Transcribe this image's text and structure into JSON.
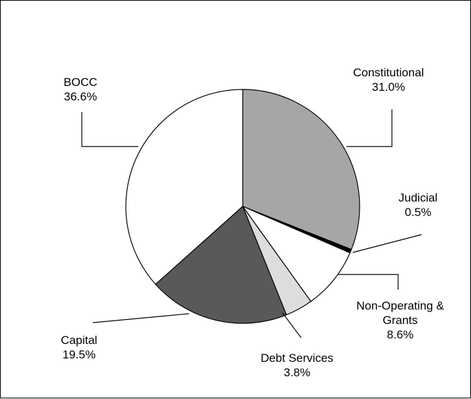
{
  "chart_data": {
    "type": "pie",
    "title": "",
    "slices": [
      {
        "name": "Constitutional",
        "value": 31.0,
        "label": "31.0%",
        "color": "#a6a6a6"
      },
      {
        "name": "Judicial",
        "value": 0.5,
        "label": "0.5%",
        "color": "#000000"
      },
      {
        "name": "Non-Operating & Grants",
        "name_lines": [
          "Non-Operating &",
          "Grants"
        ],
        "value": 8.6,
        "label": "8.6%",
        "color": "#ffffff"
      },
      {
        "name": "Debt Services",
        "value": 3.8,
        "label": "3.8%",
        "color": "#dddddd"
      },
      {
        "name": "Capital",
        "value": 19.5,
        "label": "19.5%",
        "color": "#595959"
      },
      {
        "name": "BOCC",
        "value": 36.6,
        "label": "36.6%",
        "color": "#ffffff"
      }
    ],
    "start_angle": "12 o'clock",
    "direction": "clockwise",
    "legend": "none (leader-line labels)",
    "slice_border_color": "#000000"
  }
}
